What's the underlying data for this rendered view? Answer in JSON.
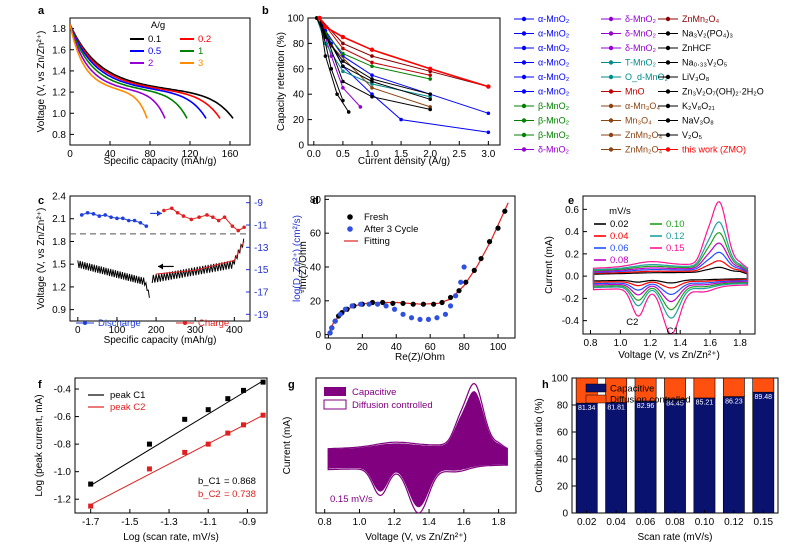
{
  "chart_data": [
    {
      "id": "a",
      "type": "line",
      "panel_label": "a",
      "xlabel": "Specific capacity (mAh/g)",
      "ylabel": "Voltage (V, vs Zn/Zn²⁺)",
      "xlim": [
        0,
        180
      ],
      "ylim": [
        0.7,
        1.9
      ],
      "xticks": [
        "0",
        "40",
        "80",
        "120",
        "160"
      ],
      "yticks": [
        "0.8",
        "1.0",
        "1.2",
        "1.4",
        "1.6",
        "1.8"
      ],
      "legend_title": "A/g",
      "series": [
        {
          "name": "0.1",
          "color": "#000000",
          "cap": 163
        },
        {
          "name": "0.2",
          "color": "#ff0000",
          "cap": 150
        },
        {
          "name": "0.5",
          "color": "#0000ff",
          "cap": 136
        },
        {
          "name": "1",
          "color": "#008000",
          "cap": 117
        },
        {
          "name": "2",
          "color": "#9400d3",
          "cap": 95
        },
        {
          "name": "3",
          "color": "#ff8c00",
          "cap": 77
        }
      ]
    },
    {
      "id": "b",
      "type": "line",
      "panel_label": "b",
      "xlabel": "Current density (A/g)",
      "ylabel": "Capacity retention (%)",
      "xlim": [
        -0.1,
        3.2
      ],
      "ylim": [
        0,
        100
      ],
      "xticks": [
        "0.0",
        "0.5",
        "1.0",
        "1.5",
        "2.0",
        "2.5",
        "3.0"
      ],
      "yticks": [
        "0",
        "20",
        "40",
        "60",
        "80",
        "100"
      ],
      "legend": [
        [
          {
            "t": "α-MnO₂",
            "c": "#0000ff"
          },
          {
            "t": "α-MnO₂",
            "c": "#0000ff"
          },
          {
            "t": "α-MnO₂",
            "c": "#0000ff"
          },
          {
            "t": "α-MnO₂",
            "c": "#0000ff"
          },
          {
            "t": "α-MnO₂",
            "c": "#0000ff"
          },
          {
            "t": "α-MnO₂",
            "c": "#0000ff"
          },
          {
            "t": "β-MnO₂",
            "c": "#008000"
          },
          {
            "t": "β-MnO₂",
            "c": "#008000"
          },
          {
            "t": "β-MnO₂",
            "c": "#008000"
          },
          {
            "t": "δ-MnO₂",
            "c": "#9400d3"
          }
        ],
        [
          {
            "t": "δ-MnO₂",
            "c": "#9400d3"
          },
          {
            "t": "δ-MnO₂",
            "c": "#9400d3"
          },
          {
            "t": "δ-MnO₂",
            "c": "#9400d3"
          },
          {
            "t": "T-MnO₂",
            "c": "#008b8b"
          },
          {
            "t": "O_d-MnO₂",
            "c": "#008b8b"
          },
          {
            "t": "MnO",
            "c": "#c00000"
          },
          {
            "t": "α-Mn₃O₄",
            "c": "#8b4513"
          },
          {
            "t": "Mn₃O₄",
            "c": "#8b4513"
          },
          {
            "t": "ZnMn₂O₄",
            "c": "#8b4513"
          },
          {
            "t": "ZnMn₂O₄",
            "c": "#8b4513"
          }
        ],
        [
          {
            "t": "ZnMn₂O₄",
            "c": "#8b0000"
          },
          {
            "t": "Na₃V₂(PO₄)₃",
            "c": "#000000"
          },
          {
            "t": "ZnHCF",
            "c": "#000000"
          },
          {
            "t": "Na₀.₃₃V₂O₅",
            "c": "#000000"
          },
          {
            "t": "LiV₃O₈",
            "c": "#000000"
          },
          {
            "t": "Zn₃V₂O₇(OH)₂·2H₂O",
            "c": "#000000"
          },
          {
            "t": "K₂V₈O₂₁",
            "c": "#000000"
          },
          {
            "t": "NaV₃O₈",
            "c": "#000000"
          },
          {
            "t": "V₂O₅",
            "c": "#000000"
          },
          {
            "t": "this work (ZMO)",
            "c": "#ff0000"
          }
        ]
      ]
    },
    {
      "id": "c",
      "type": "line",
      "panel_label": "c",
      "xlabel": "Specific capacity (mAh/g)",
      "ylabel": "Voltage (V, vs Zn/Zn²⁺)",
      "y2label": "log(D_Zn²⁺) (cm²/s)",
      "xlim": [
        -20,
        440
      ],
      "ylim": [
        0.75,
        2.4
      ],
      "y2lim": [
        -19.6,
        -8.4
      ],
      "xticks": [
        "0",
        "100",
        "200",
        "300",
        "400"
      ],
      "yticks": [
        "0.9",
        "1.2",
        "1.5",
        "1.8",
        "2.1",
        "2.4"
      ],
      "y2ticks": [
        "-9",
        "-11",
        "-13",
        "-15",
        "-17",
        "-19"
      ],
      "legend": [
        {
          "name": "Discharge",
          "color": "#1f3fdd"
        },
        {
          "name": "Charge",
          "color": "#e02020"
        }
      ],
      "discharge_logD": [
        [
          10,
          -10.1
        ],
        [
          25,
          -9.9
        ],
        [
          40,
          -10.0
        ],
        [
          55,
          -10.2
        ],
        [
          70,
          -10.1
        ],
        [
          85,
          -10.3
        ],
        [
          100,
          -10.4
        ],
        [
          115,
          -10.4
        ],
        [
          130,
          -10.6
        ],
        [
          145,
          -10.6
        ],
        [
          160,
          -10.8
        ],
        [
          175,
          -11.1
        ]
      ],
      "charge_logD": [
        [
          220,
          -9.7
        ],
        [
          240,
          -9.5
        ],
        [
          255,
          -9.9
        ],
        [
          270,
          -10.2
        ],
        [
          290,
          -10.5
        ],
        [
          310,
          -10.3
        ],
        [
          330,
          -10.1
        ],
        [
          345,
          -10.3
        ],
        [
          360,
          -10.6
        ],
        [
          375,
          -10.3
        ],
        [
          395,
          -11.1
        ],
        [
          410,
          -11.5
        ],
        [
          425,
          -11.2
        ]
      ]
    },
    {
      "id": "d",
      "type": "scatter",
      "panel_label": "d",
      "xlabel": "Re(Z)/Ohm",
      "ylabel": "-Im(Z)/Ohm",
      "xlim": [
        -2,
        110
      ],
      "ylim": [
        -2,
        82
      ],
      "xticks": [
        "0",
        "20",
        "40",
        "60",
        "80",
        "100"
      ],
      "yticks": [
        "0",
        "20",
        "40",
        "60",
        "80"
      ],
      "legend": [
        {
          "name": "Fresh",
          "color": "#000000"
        },
        {
          "name": "After 3 Cycle",
          "color": "#3050e0"
        },
        {
          "name": "Fitting",
          "color": "#e02020"
        }
      ],
      "fresh": [
        [
          1,
          1
        ],
        [
          2,
          4
        ],
        [
          4,
          8
        ],
        [
          6,
          11
        ],
        [
          8,
          13
        ],
        [
          11,
          15
        ],
        [
          15,
          17
        ],
        [
          20,
          18
        ],
        [
          26,
          19
        ],
        [
          32,
          19
        ],
        [
          38,
          18.5
        ],
        [
          44,
          18.5
        ],
        [
          50,
          18
        ],
        [
          56,
          18
        ],
        [
          62,
          18
        ],
        [
          67,
          19
        ],
        [
          72,
          22
        ],
        [
          77,
          26
        ],
        [
          81,
          31
        ],
        [
          86,
          38
        ],
        [
          90,
          45
        ],
        [
          95,
          55
        ],
        [
          100,
          63
        ],
        [
          104,
          73
        ]
      ],
      "cycled": [
        [
          1,
          1
        ],
        [
          2,
          4
        ],
        [
          4,
          8
        ],
        [
          7,
          12
        ],
        [
          10,
          15
        ],
        [
          14,
          17
        ],
        [
          19,
          18
        ],
        [
          24,
          18
        ],
        [
          29,
          18
        ],
        [
          34,
          17
        ],
        [
          39,
          15
        ],
        [
          44,
          12
        ],
        [
          49,
          10
        ],
        [
          54,
          9
        ],
        [
          59,
          9
        ],
        [
          64,
          10
        ],
        [
          69,
          12
        ],
        [
          72,
          17
        ],
        [
          75,
          23
        ],
        [
          78,
          31
        ],
        [
          80,
          40
        ]
      ],
      "fit": [
        [
          0,
          0
        ],
        [
          3,
          7
        ],
        [
          8,
          13
        ],
        [
          15,
          17
        ],
        [
          25,
          19
        ],
        [
          40,
          19
        ],
        [
          55,
          18
        ],
        [
          65,
          18.5
        ],
        [
          72,
          21
        ],
        [
          80,
          29
        ],
        [
          88,
          41
        ],
        [
          96,
          56
        ],
        [
          106,
          78
        ]
      ]
    },
    {
      "id": "e",
      "type": "line",
      "panel_label": "e",
      "xlabel": "Voltage (V, vs Zn/Zn²⁺)",
      "ylabel": "Current (mA)",
      "xlim": [
        0.75,
        1.9
      ],
      "ylim": [
        -0.52,
        0.72
      ],
      "xticks": [
        "0.8",
        "1.0",
        "1.2",
        "1.4",
        "1.6",
        "1.8"
      ],
      "yticks": [
        "-0.4",
        "-0.2",
        "0.0",
        "0.2",
        "0.4",
        "0.6"
      ],
      "legend_title": "mV/s",
      "series": [
        {
          "name": "0.02",
          "color": "#000000",
          "k": 0.15
        },
        {
          "name": "0.04",
          "color": "#ff0000",
          "k": 0.28
        },
        {
          "name": "0.06",
          "color": "#2050ff",
          "k": 0.42
        },
        {
          "name": "0.08",
          "color": "#c000c0",
          "k": 0.55
        },
        {
          "name": "0.10",
          "color": "#20a020",
          "k": 0.68
        },
        {
          "name": "0.12",
          "color": "#20a0a0",
          "k": 0.8
        },
        {
          "name": "0.15",
          "color": "#ff1493",
          "k": 1.0
        }
      ],
      "annotations": [
        "C2",
        "C1"
      ]
    },
    {
      "id": "f",
      "type": "scatter",
      "panel_label": "f",
      "xlabel": "Log (scan rate, mV/s)",
      "ylabel": "Log (peak current, mA)",
      "xlim": [
        -1.78,
        -0.8
      ],
      "ylim": [
        -1.3,
        -0.32
      ],
      "xticks": [
        "-1.7",
        "-1.5",
        "-1.3",
        "-1.1",
        "-0.9"
      ],
      "yticks": [
        "-0.4",
        "-0.6",
        "-0.8",
        "-1.0",
        "-1.2"
      ],
      "series": [
        {
          "name": "peak C1",
          "color": "#000000",
          "x": [
            -1.7,
            -1.4,
            -1.22,
            -1.1,
            -1.0,
            -0.92,
            -0.82
          ],
          "y": [
            -1.09,
            -0.8,
            -0.62,
            -0.55,
            -0.47,
            -0.41,
            -0.35
          ],
          "fit": [
            [
              -1.7,
              -1.1
            ],
            [
              -0.82,
              -0.34
            ]
          ]
        },
        {
          "name": "peak C2",
          "color": "#e02020",
          "x": [
            -1.7,
            -1.4,
            -1.22,
            -1.1,
            -1.0,
            -0.92,
            -0.82
          ],
          "y": [
            -1.25,
            -0.98,
            -0.86,
            -0.8,
            -0.72,
            -0.66,
            -0.59
          ],
          "fit": [
            [
              -1.7,
              -1.24
            ],
            [
              -0.82,
              -0.59
            ]
          ]
        }
      ],
      "annotations": [
        {
          "label": "b_C1",
          "value": "= 0.868",
          "color": "#000000"
        },
        {
          "label": "b_C2",
          "value": "= 0.738",
          "color": "#e02020"
        }
      ]
    },
    {
      "id": "g",
      "type": "area",
      "panel_label": "g",
      "xlabel": "Voltage (V, vs Zn/Zn²⁺)",
      "ylabel": "Current (mA)",
      "xlim": [
        0.75,
        1.9
      ],
      "ylim": [
        -0.52,
        0.72
      ],
      "xticks": [
        "0.8",
        "1.0",
        "1.2",
        "1.4",
        "1.6",
        "1.8"
      ],
      "legend": [
        {
          "name": "Capacitive",
          "color": "#800080"
        },
        {
          "name": "Diffusion controlled",
          "color": "#800080"
        }
      ],
      "annotation": "0.15 mV/s"
    },
    {
      "id": "h",
      "type": "bar",
      "panel_label": "h",
      "xlabel": "Scan rate (mV/s)",
      "ylabel": "Contribution ratio (%)",
      "categories": [
        "0.02",
        "0.04",
        "0.06",
        "0.08",
        "0.10",
        "0.12",
        "0.15"
      ],
      "ylim": [
        0,
        100
      ],
      "yticks": [
        "0",
        "20",
        "40",
        "60",
        "80",
        "100"
      ],
      "series": [
        {
          "name": "Capacitive",
          "color": "#0a1270",
          "values": [
            81.34,
            81.81,
            82.96,
            84.45,
            85.21,
            86.23,
            89.48
          ]
        },
        {
          "name": "Diffusion controlled",
          "color": "#ff5010",
          "values": [
            18.66,
            18.19,
            17.04,
            15.55,
            14.79,
            13.77,
            10.52
          ]
        }
      ],
      "labels": [
        "81.34",
        "81.81",
        "82.96",
        "84.45",
        "85.21",
        "86.23",
        "89.48"
      ]
    }
  ]
}
